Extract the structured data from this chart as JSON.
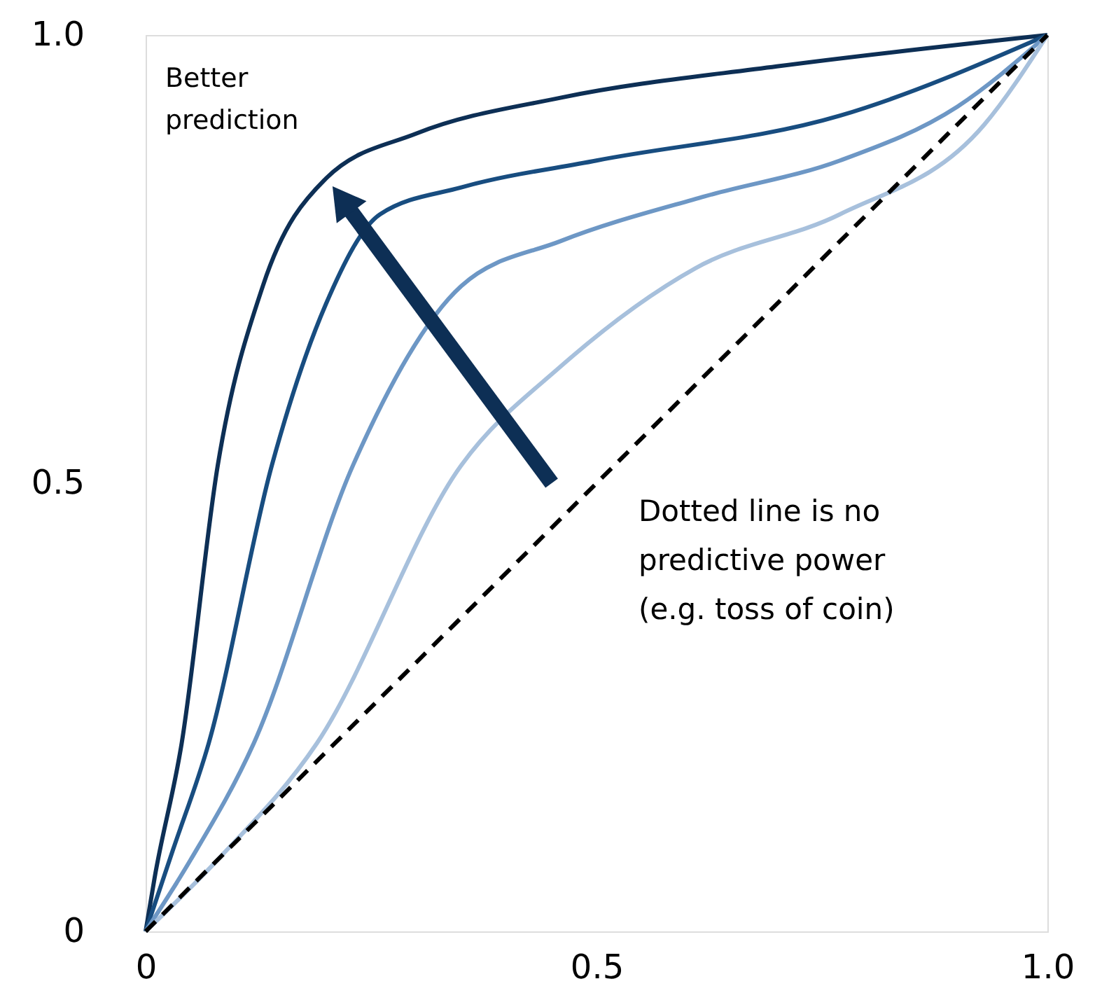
{
  "chart_data": {
    "type": "line",
    "xlim": [
      0,
      1
    ],
    "ylim": [
      0,
      1
    ],
    "xticks": [
      0,
      0.5,
      {
        "value": 1,
        "label": "1.0"
      }
    ],
    "yticks": [
      0,
      0.5,
      {
        "value": 1,
        "label": "1.0"
      }
    ],
    "grid": false,
    "marker": "none",
    "series": [
      {
        "color": "#0d2f55",
        "line_style": "solid",
        "x": [
          0,
          0.01,
          0.04,
          0.08,
          0.13,
          0.2,
          0.3,
          0.46,
          0.7,
          1
        ],
        "values": [
          0,
          0.06,
          0.21,
          0.52,
          0.72,
          0.84,
          0.89,
          0.93,
          0.965,
          1
        ]
      },
      {
        "color": "#184d80",
        "line_style": "solid",
        "x": [
          0,
          0.03,
          0.07,
          0.14,
          0.2,
          0.26,
          0.35,
          0.5,
          0.77,
          1
        ],
        "values": [
          0,
          0.09,
          0.21,
          0.52,
          0.7,
          0.8,
          0.83,
          0.86,
          0.91,
          1
        ]
      },
      {
        "color": "#6d97c5",
        "line_style": "solid",
        "x": [
          0,
          0.05,
          0.12,
          0.23,
          0.35,
          0.46,
          0.62,
          0.77,
          0.9,
          1
        ],
        "values": [
          0,
          0.08,
          0.21,
          0.52,
          0.72,
          0.77,
          0.82,
          0.86,
          0.92,
          1
        ]
      },
      {
        "color": "#a7c0dc",
        "line_style": "solid",
        "x": [
          0,
          0.08,
          0.19,
          0.35,
          0.46,
          0.61,
          0.77,
          0.93,
          1
        ],
        "values": [
          0,
          0.08,
          0.21,
          0.52,
          0.63,
          0.74,
          0.8,
          0.9,
          1
        ]
      },
      {
        "color": "#000000",
        "line_style": "dashed",
        "x": [
          0,
          1
        ],
        "values": [
          0,
          1
        ]
      }
    ],
    "annotations": [
      "Better\nprediction",
      "Dotted line is no\npredictive power\n(e.g. toss of coin)"
    ]
  }
}
